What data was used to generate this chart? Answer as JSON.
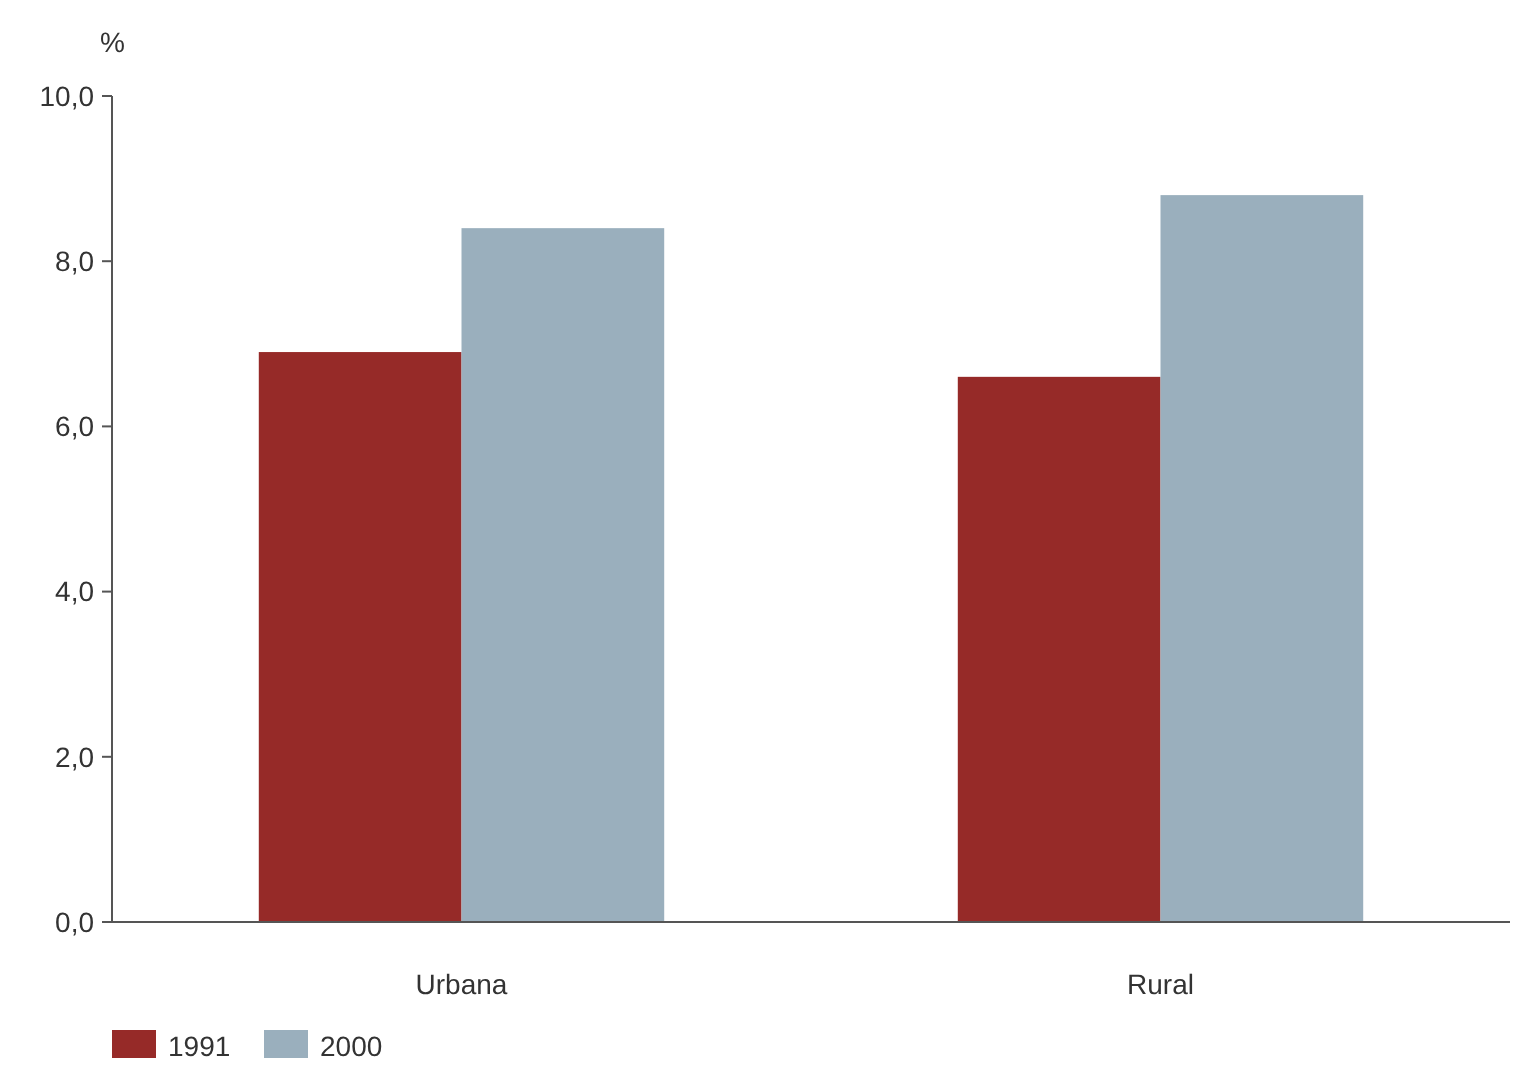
{
  "chart_data": {
    "type": "bar",
    "ylabel": "%",
    "categories": [
      "Urbana",
      "Rural"
    ],
    "series": [
      {
        "name": "1991",
        "color": "#962a28",
        "values": [
          6.9,
          6.6
        ]
      },
      {
        "name": "2000",
        "color": "#9aafbd",
        "values": [
          8.4,
          8.8
        ]
      }
    ],
    "ylim": [
      0,
      10
    ],
    "yticks": [
      {
        "value": 0,
        "label": "0,0"
      },
      {
        "value": 2,
        "label": "2,0"
      },
      {
        "value": 4,
        "label": "4,0"
      },
      {
        "value": 6,
        "label": "6,0"
      },
      {
        "value": 8,
        "label": "8,0"
      },
      {
        "value": 10,
        "label": "10,0"
      }
    ],
    "grid": false,
    "legend": "bottom left"
  }
}
